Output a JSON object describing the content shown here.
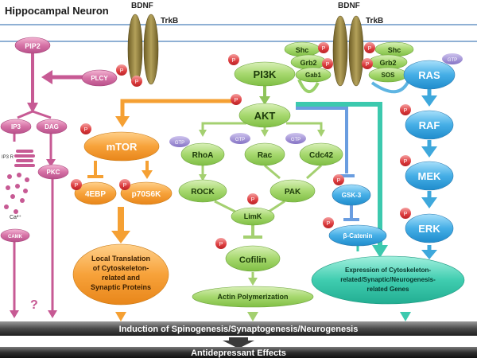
{
  "title": "Hippocampal Neuron",
  "receptors": {
    "ligand": "BDNF",
    "receptor": "TrkB"
  },
  "phospho": "P",
  "nodes": {
    "pip2": "PIP2",
    "plcy": "PLCY",
    "ip3": "IP3",
    "dag": "DAG",
    "ip3r": "IP3 R",
    "pkc": "PKC",
    "ca": "Ca²⁺",
    "camk": "CAMK",
    "question": "?",
    "pi3k": "PI3K",
    "akt": "AKT",
    "mtor": "mTOR",
    "ebp": "4EBP",
    "p70": "p70S6K",
    "rhoa": "RhoA",
    "rac": "Rac",
    "cdc42": "Cdc42",
    "rock": "ROCK",
    "pak": "PAK",
    "limk": "LimK",
    "cofilin": "Cofilin",
    "actin": "Actin Polymerization",
    "gsk3": "GSK-3",
    "bcat": "β-Catenin",
    "shc": "Shc",
    "grb2": "Grb2",
    "gab1": "Gab1",
    "sos": "SOS",
    "ras": "RAS",
    "raf": "RAF",
    "mek": "MEK",
    "erk": "ERK",
    "gtp": "GTP"
  },
  "outcomes": {
    "translation": [
      "Local Translation",
      "of Cytoskeleton-",
      "related and",
      "Synaptic Proteins"
    ],
    "expression": [
      "Expression of Cytoskeleton-",
      "related/Synaptic/Neurogenesis-",
      "related Genes"
    ],
    "induction": "Induction of Spinogenesis/Synaptogenesis/Neurogenesis",
    "antidepressant": "Antidepressant Effects"
  },
  "colors": {
    "membrane": "#9fbad8",
    "receptor": "#8a7a3a",
    "pink": "#c75a94",
    "green": "#9ad06a",
    "orange": "#f5a033",
    "blue": "#3ea8dc",
    "phospho": "#d9353a",
    "gtp": "#8f7cc8",
    "teal": "#3cc9ae"
  }
}
